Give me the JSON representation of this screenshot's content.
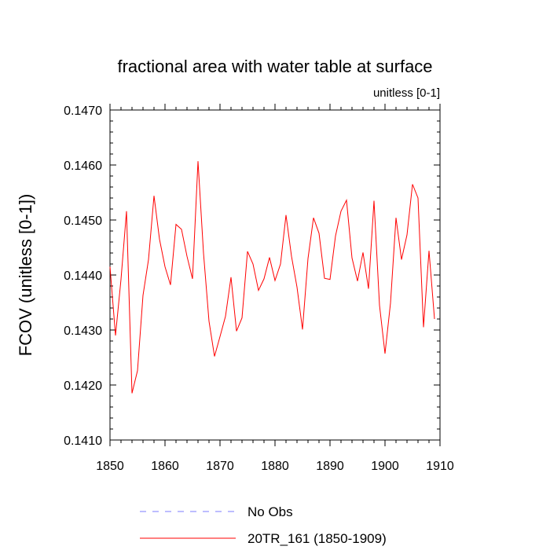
{
  "chart_data": {
    "type": "line",
    "title": "fractional area with water table at surface",
    "subtitle": "unitless [0-1]",
    "xlabel": "",
    "ylabel": "FCOV  (unitless [0-1])",
    "xlim": [
      1850,
      1910
    ],
    "ylim": [
      0.141,
      0.147
    ],
    "xticks": [
      1850,
      1860,
      1870,
      1880,
      1890,
      1900,
      1910
    ],
    "xtick_labels": [
      "1850",
      "1860",
      "1870",
      "1880",
      "1890",
      "1900",
      "1910"
    ],
    "yticks": [
      0.141,
      0.142,
      0.143,
      0.144,
      0.145,
      0.146,
      0.147
    ],
    "ytick_labels": [
      "0.1410",
      "0.1420",
      "0.1430",
      "0.1440",
      "0.1450",
      "0.1460",
      "0.1470"
    ],
    "grid": false,
    "legend_position": "bottom",
    "series": [
      {
        "name": "20TR_161 (1850-1909)",
        "color": "#ff0000",
        "style": "solid",
        "x": [
          1850,
          1851,
          1852,
          1853,
          1854,
          1855,
          1856,
          1857,
          1858,
          1859,
          1860,
          1861,
          1862,
          1863,
          1864,
          1865,
          1866,
          1867,
          1868,
          1869,
          1870,
          1871,
          1872,
          1873,
          1874,
          1875,
          1876,
          1877,
          1878,
          1879,
          1880,
          1881,
          1882,
          1883,
          1884,
          1885,
          1886,
          1887,
          1888,
          1889,
          1890,
          1891,
          1892,
          1893,
          1894,
          1895,
          1896,
          1897,
          1898,
          1899,
          1900,
          1901,
          1902,
          1903,
          1904,
          1905,
          1906,
          1907,
          1908,
          1909
        ],
        "values": [
          0.14415,
          0.1429,
          0.14392,
          0.14516,
          0.14185,
          0.14226,
          0.14363,
          0.14428,
          0.14544,
          0.14465,
          0.14415,
          0.14382,
          0.14492,
          0.14483,
          0.14434,
          0.14393,
          0.14607,
          0.1444,
          0.14316,
          0.14252,
          0.14288,
          0.14325,
          0.14396,
          0.14298,
          0.14322,
          0.14443,
          0.1442,
          0.14372,
          0.14393,
          0.14432,
          0.1439,
          0.1442,
          0.14509,
          0.14434,
          0.14378,
          0.14301,
          0.1443,
          0.14504,
          0.14476,
          0.14394,
          0.14392,
          0.14471,
          0.14516,
          0.14536,
          0.14431,
          0.14389,
          0.14441,
          0.14375,
          0.14535,
          0.14345,
          0.14257,
          0.14349,
          0.14504,
          0.14428,
          0.14473,
          0.14565,
          0.1454,
          0.14305,
          0.14444,
          0.1432
        ]
      },
      {
        "name": "No Obs",
        "color": "#7b7bff",
        "style": "dashed",
        "x": [],
        "values": []
      }
    ]
  }
}
